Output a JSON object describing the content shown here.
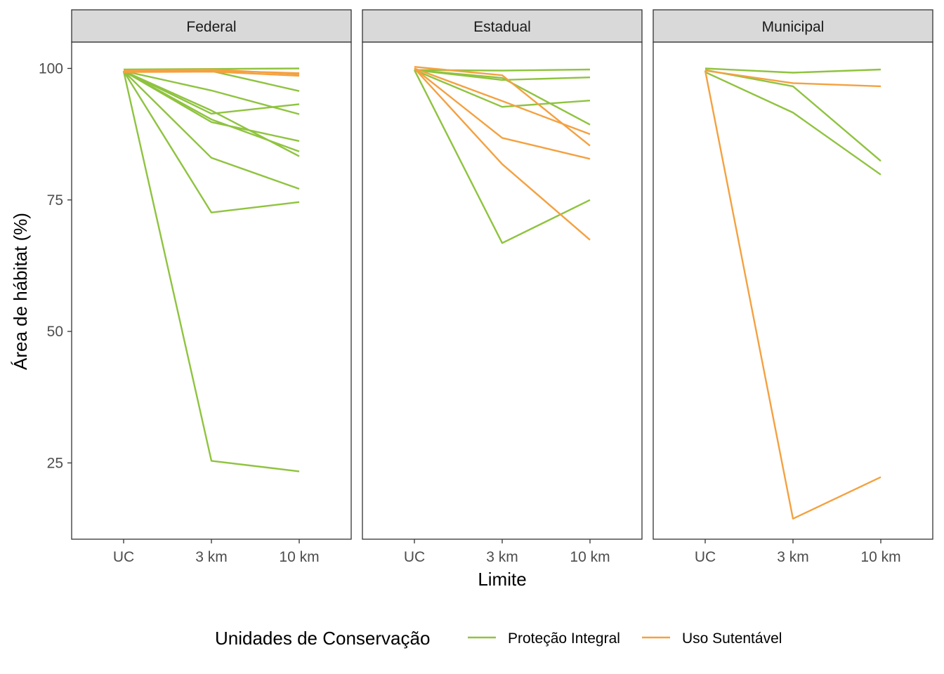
{
  "chart_data": {
    "type": "line",
    "facet_type": "facet_wrap",
    "x_categories": [
      "UC",
      "3 km",
      "10 km"
    ],
    "xlabel": "Limite",
    "ylabel": "Área de hábitat (%)",
    "ylim": [
      10.5,
      105
    ],
    "yticks": [
      25,
      50,
      75,
      100
    ],
    "ytick_labels": [
      "25",
      "50",
      "75",
      "100"
    ],
    "legend": {
      "title": "Unidades de Conservação",
      "position": "bottom",
      "items": [
        {
          "key": "PI",
          "label": "Proteção Integral",
          "color": "#8fc33f"
        },
        {
          "key": "US",
          "label": "Uso Sutentável",
          "color": "#f4a140"
        }
      ]
    },
    "colors": {
      "PI": "#8fc33f",
      "US": "#f4a140"
    },
    "panels": [
      {
        "title": "Federal",
        "series": [
          {
            "group": "PI",
            "values": [
              99.8,
              99.9,
              100.0
            ]
          },
          {
            "group": "PI",
            "values": [
              99.5,
              99.5,
              95.7
            ]
          },
          {
            "group": "PI",
            "values": [
              99.5,
              95.8,
              91.3
            ]
          },
          {
            "group": "PI",
            "values": [
              99.5,
              91.4,
              93.2
            ]
          },
          {
            "group": "PI",
            "values": [
              99.5,
              92.0,
              83.3
            ]
          },
          {
            "group": "PI",
            "values": [
              99.5,
              89.8,
              86.2
            ]
          },
          {
            "group": "PI",
            "values": [
              99.5,
              90.3,
              84.2
            ]
          },
          {
            "group": "PI",
            "values": [
              99.5,
              83.0,
              77.1
            ]
          },
          {
            "group": "PI",
            "values": [
              99.5,
              72.6,
              74.6
            ]
          },
          {
            "group": "PI",
            "values": [
              99.5,
              25.4,
              23.4
            ]
          },
          {
            "group": "US",
            "values": [
              99.3,
              99.4,
              98.6
            ]
          },
          {
            "group": "US",
            "values": [
              99.4,
              99.6,
              99.1
            ]
          },
          {
            "group": "US",
            "values": [
              99.6,
              99.8,
              98.9
            ]
          }
        ]
      },
      {
        "title": "Estadual",
        "series": [
          {
            "group": "PI",
            "values": [
              99.7,
              99.6,
              99.8
            ]
          },
          {
            "group": "PI",
            "values": [
              99.7,
              97.8,
              98.3
            ]
          },
          {
            "group": "PI",
            "values": [
              99.7,
              98.2,
              89.3
            ]
          },
          {
            "group": "PI",
            "values": [
              99.7,
              92.7,
              93.9
            ]
          },
          {
            "group": "PI",
            "values": [
              99.7,
              66.8,
              75.0
            ]
          },
          {
            "group": "US",
            "values": [
              100.3,
              98.7,
              85.3
            ]
          },
          {
            "group": "US",
            "values": [
              100.0,
              93.8,
              87.5
            ]
          },
          {
            "group": "US",
            "values": [
              100.0,
              86.8,
              82.8
            ]
          },
          {
            "group": "US",
            "values": [
              100.0,
              81.8,
              67.4
            ]
          }
        ]
      },
      {
        "title": "Municipal",
        "series": [
          {
            "group": "PI",
            "values": [
              100.0,
              99.2,
              99.8
            ]
          },
          {
            "group": "PI",
            "values": [
              99.7,
              96.6,
              82.4
            ]
          },
          {
            "group": "PI",
            "values": [
              99.3,
              91.6,
              79.8
            ]
          },
          {
            "group": "US",
            "values": [
              99.6,
              97.2,
              96.6
            ]
          },
          {
            "group": "US",
            "values": [
              99.6,
              14.4,
              22.3
            ]
          }
        ]
      }
    ]
  }
}
